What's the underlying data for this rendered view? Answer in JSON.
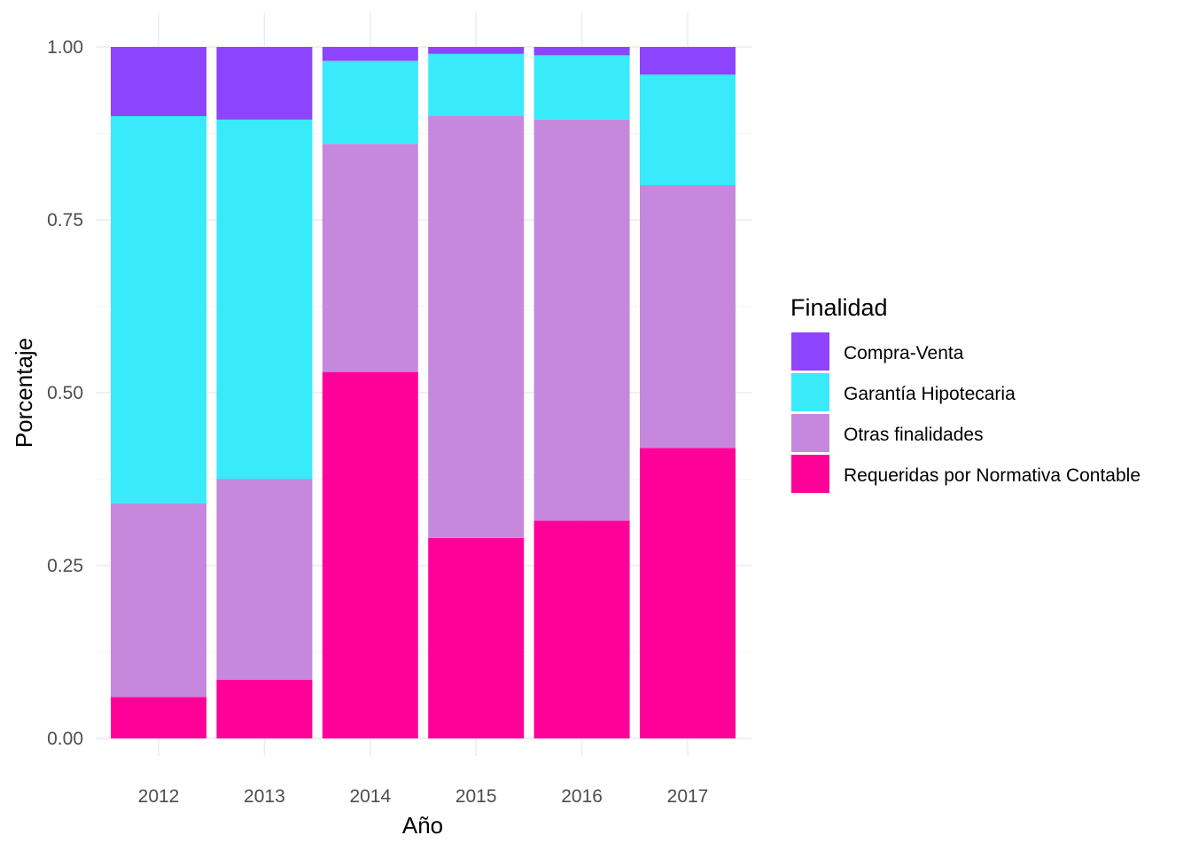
{
  "chart_data": {
    "type": "bar",
    "stacked": true,
    "normalized": true,
    "categories": [
      "2012",
      "2013",
      "2014",
      "2015",
      "2016",
      "2017"
    ],
    "xlabel": "Año",
    "ylabel": "Porcentaje",
    "ylim": [
      0,
      1
    ],
    "yticks": [
      "0.00",
      "0.25",
      "0.50",
      "0.75",
      "1.00"
    ],
    "ytick_values": [
      0,
      0.25,
      0.5,
      0.75,
      1
    ],
    "grid": true,
    "legend": {
      "title": "Finalidad",
      "position": "right"
    },
    "series": [
      {
        "name": "Requeridas por Normativa Contable",
        "color": "#FF0099",
        "values": [
          0.06,
          0.085,
          0.53,
          0.29,
          0.315,
          0.42
        ]
      },
      {
        "name": "Otras finalidades",
        "color": "#C688DD",
        "values": [
          0.28,
          0.29,
          0.33,
          0.61,
          0.58,
          0.38
        ]
      },
      {
        "name": "Garantía Hipotecaria",
        "color": "#38EAFA",
        "values": [
          0.56,
          0.52,
          0.12,
          0.09,
          0.093,
          0.16
        ]
      },
      {
        "name": "Compra-Venta",
        "color": "#8C44FF",
        "values": [
          0.1,
          0.105,
          0.02,
          0.01,
          0.012,
          0.04
        ]
      }
    ],
    "legend_order": [
      "Compra-Venta",
      "Garantía Hipotecaria",
      "Otras finalidades",
      "Requeridas por Normativa Contable"
    ]
  }
}
